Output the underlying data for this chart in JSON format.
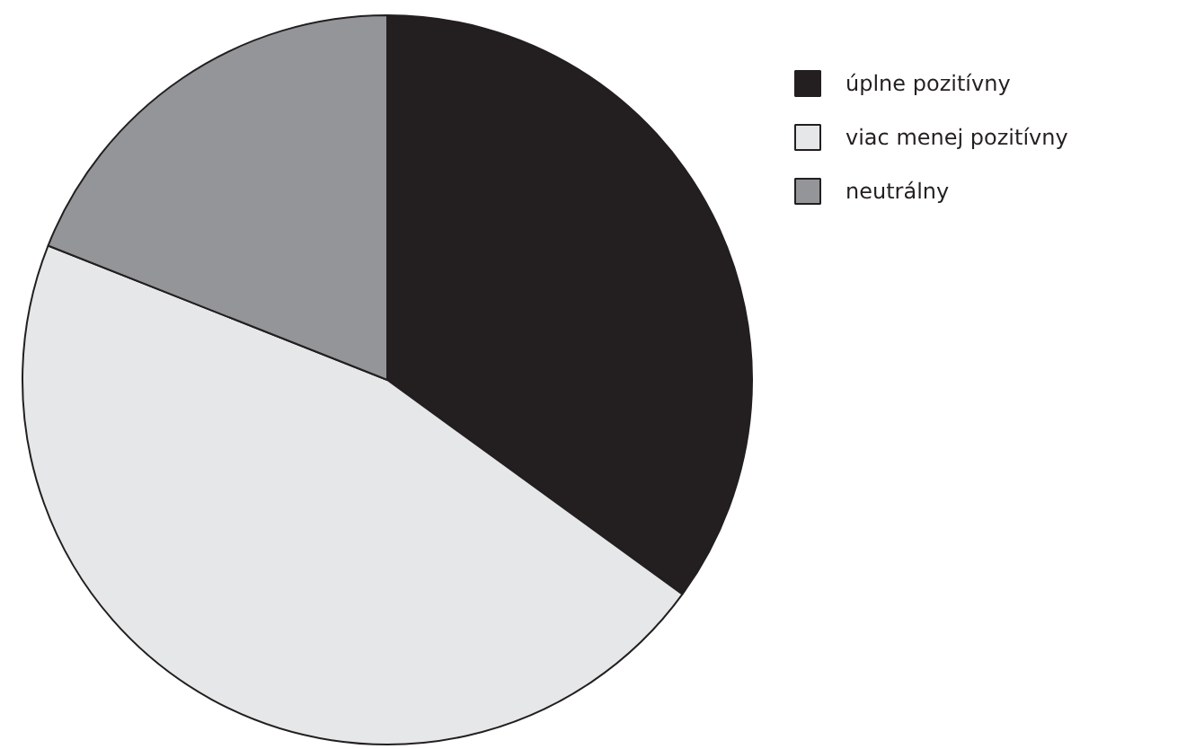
{
  "chart_data": {
    "type": "pie",
    "categories": [
      "úplne pozitívny",
      "viac menej pozitívny",
      "neutrálny"
    ],
    "values": [
      35,
      46,
      19
    ],
    "colors": [
      "#231f20",
      "#e6e7e8",
      "#939598"
    ],
    "legend": "top right"
  }
}
